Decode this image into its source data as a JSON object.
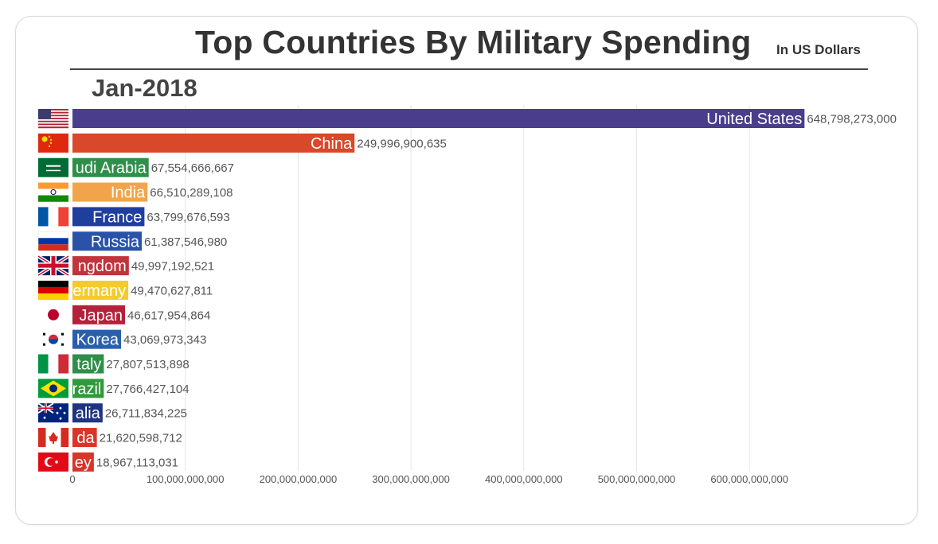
{
  "chart_data": {
    "type": "bar",
    "orientation": "horizontal",
    "title": "Top Countries By Military Spending",
    "subtitle": "In US Dollars",
    "date": "Jan-2018",
    "xlabel": "",
    "ylabel": "",
    "xlim": [
      0,
      650000000000
    ],
    "grid": true,
    "ticks": [
      {
        "value": 0,
        "label": "0"
      },
      {
        "value": 100000000000,
        "label": "100,000,000,000"
      },
      {
        "value": 200000000000,
        "label": "200,000,000,000"
      },
      {
        "value": 300000000000,
        "label": "300,000,000,000"
      },
      {
        "value": 400000000000,
        "label": "400,000,000,000"
      },
      {
        "value": 500000000000,
        "label": "500,000,000,000"
      },
      {
        "value": 600000000000,
        "label": "600,000,000,000"
      }
    ],
    "bars": [
      {
        "country": "United States",
        "shown_label": "United States",
        "value": 648798273000,
        "value_label": "648,798,273,000",
        "color": "#4a3d8c",
        "flag": "flag-united-states"
      },
      {
        "country": "China",
        "shown_label": "China",
        "value": 249996900635,
        "value_label": "249,996,900,635",
        "color": "#d9482a",
        "flag": "flag-china"
      },
      {
        "country": "Saudi Arabia",
        "shown_label": "udi Arabia",
        "value": 67554666667,
        "value_label": "67,554,666,667",
        "color": "#2f8f4a",
        "flag": "flag-saudi-arabia"
      },
      {
        "country": "India",
        "shown_label": "India",
        "value": 66510289108,
        "value_label": "66,510,289,108",
        "color": "#f2a44a",
        "flag": "flag-india"
      },
      {
        "country": "France",
        "shown_label": "France",
        "value": 63799676593,
        "value_label": "63,799,676,593",
        "color": "#1f3f9e",
        "flag": "flag-france"
      },
      {
        "country": "Russia",
        "shown_label": "Russia",
        "value": 61387546980,
        "value_label": "61,387,546,980",
        "color": "#2a52a8",
        "flag": "flag-russia"
      },
      {
        "country": "United Kingdom",
        "shown_label": "ngdom",
        "value": 49997192521,
        "value_label": "49,997,192,521",
        "color": "#c0343c",
        "flag": "flag-united-kingdom"
      },
      {
        "country": "Germany",
        "shown_label": "ermany",
        "value": 49470627811,
        "value_label": "49,470,627,811",
        "color": "#f2cc2e",
        "flag": "flag-germany"
      },
      {
        "country": "Japan",
        "shown_label": "Japan",
        "value": 46617954864,
        "value_label": "46,617,954,864",
        "color": "#b5213a",
        "flag": "flag-japan"
      },
      {
        "country": "South Korea",
        "shown_label": "Korea",
        "value": 43069973343,
        "value_label": "43,069,973,343",
        "color": "#2a5fb0",
        "flag": "flag-south-korea"
      },
      {
        "country": "Italy",
        "shown_label": "taly",
        "value": 27807513898,
        "value_label": "27,807,513,898",
        "color": "#2f8f4a",
        "flag": "flag-italy"
      },
      {
        "country": "Brazil",
        "shown_label": "razil",
        "value": 27766427104,
        "value_label": "27,766,427,104",
        "color": "#2f9a3c",
        "flag": "flag-brazil"
      },
      {
        "country": "Australia",
        "shown_label": "alia",
        "value": 26711834225,
        "value_label": "26,711,834,225",
        "color": "#1f3580",
        "flag": "flag-australia"
      },
      {
        "country": "Canada",
        "shown_label": "da",
        "value": 21620598712,
        "value_label": "21,620,598,712",
        "color": "#d9352a",
        "flag": "flag-canada"
      },
      {
        "country": "Turkey",
        "shown_label": "ey",
        "value": 18967113031,
        "value_label": "18,967,113,031",
        "color": "#d9352a",
        "flag": "flag-turkey"
      }
    ]
  }
}
